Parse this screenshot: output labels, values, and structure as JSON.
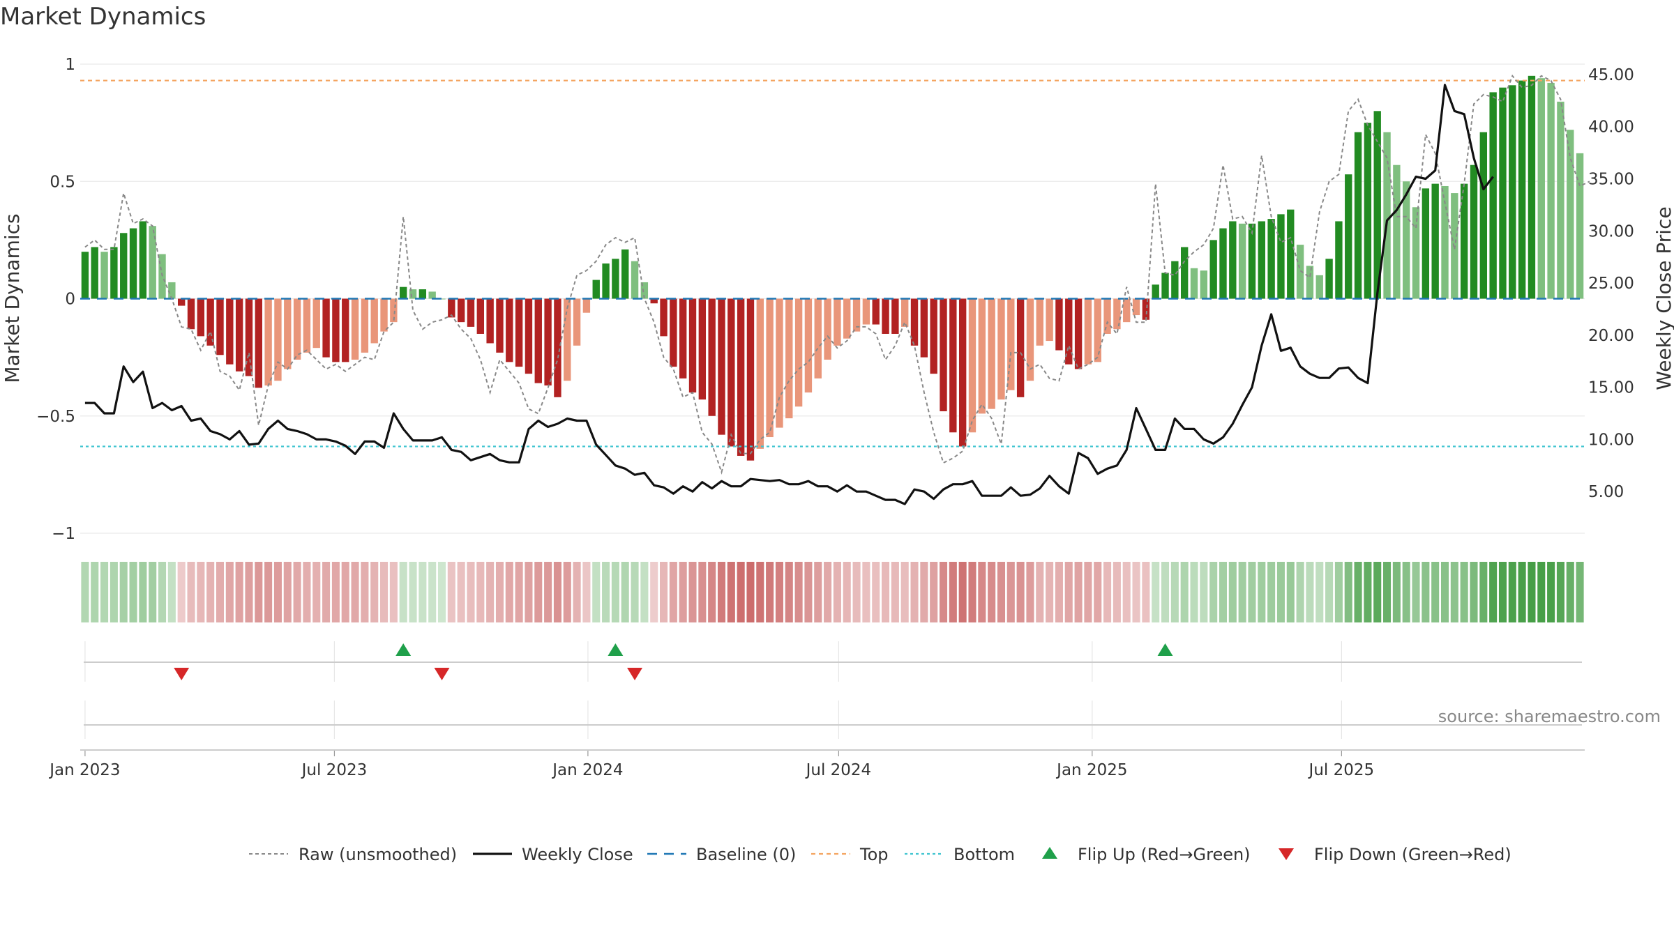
{
  "chart_data": {
    "type": "bar",
    "title": "Market Dynamics",
    "source": "source: sharemaestro.com",
    "start_date": "2023-01-01",
    "frequency": "weekly",
    "ylabel_left": "Market Dynamics",
    "ylabel_right": "Weekly Close Price",
    "ylim_left": [
      -1,
      1
    ],
    "ylim_right": [
      1.0,
      46.0
    ],
    "left_ticks": [
      "1",
      "0.5",
      "0",
      "−0.5",
      "−1"
    ],
    "left_tick_values": [
      1,
      0.5,
      0,
      -0.5,
      -1
    ],
    "right_ticks": [
      "45.00",
      "40.00",
      "35.00",
      "30.00",
      "25.00",
      "20.00",
      "15.00",
      "10.00",
      "5.00"
    ],
    "right_tick_values": [
      45,
      40,
      35,
      30,
      25,
      20,
      15,
      10,
      5
    ],
    "x_ticks": [
      "Jan 2023",
      "Jul 2023",
      "Jan 2024",
      "Jul 2024",
      "Jan 2025",
      "Jul 2025"
    ],
    "x_tick_dates": [
      "2023-01-01",
      "2023-07-01",
      "2024-01-01",
      "2024-07-01",
      "2025-01-01",
      "2025-07-01"
    ],
    "top_line": 0.93,
    "bottom_line": -0.63,
    "baseline": 0,
    "series": [
      {
        "name": "Market Dynamics (smoothed)",
        "values": [
          0.2,
          0.22,
          0.2,
          0.22,
          0.28,
          0.3,
          0.33,
          0.31,
          0.19,
          0.07,
          -0.03,
          -0.13,
          -0.16,
          -0.2,
          -0.24,
          -0.28,
          -0.31,
          -0.33,
          -0.38,
          -0.37,
          -0.35,
          -0.3,
          -0.26,
          -0.23,
          -0.21,
          -0.25,
          -0.27,
          -0.27,
          -0.26,
          -0.23,
          -0.19,
          -0.14,
          -0.1,
          0.05,
          0.04,
          0.04,
          0.03,
          0.0,
          -0.08,
          -0.1,
          -0.12,
          -0.15,
          -0.19,
          -0.23,
          -0.27,
          -0.29,
          -0.32,
          -0.36,
          -0.37,
          -0.42,
          -0.35,
          -0.2,
          -0.06,
          0.08,
          0.15,
          0.17,
          0.21,
          0.16,
          0.07,
          -0.02,
          -0.16,
          -0.29,
          -0.34,
          -0.4,
          -0.43,
          -0.5,
          -0.58,
          -0.63,
          -0.67,
          -0.69,
          -0.64,
          -0.59,
          -0.55,
          -0.51,
          -0.46,
          -0.4,
          -0.34,
          -0.26,
          -0.2,
          -0.17,
          -0.14,
          -0.11,
          -0.11,
          -0.15,
          -0.15,
          -0.12,
          -0.2,
          -0.25,
          -0.32,
          -0.48,
          -0.57,
          -0.63,
          -0.57,
          -0.49,
          -0.47,
          -0.43,
          -0.39,
          -0.42,
          -0.35,
          -0.2,
          -0.18,
          -0.22,
          -0.28,
          -0.3,
          -0.28,
          -0.27,
          -0.15,
          -0.13,
          -0.1,
          -0.07,
          -0.09,
          0.06,
          0.11,
          0.16,
          0.22,
          0.13,
          0.12,
          0.25,
          0.3,
          0.33,
          0.32,
          0.32,
          0.33,
          0.34,
          0.36,
          0.38,
          0.23,
          0.14,
          0.1,
          0.17,
          0.33,
          0.53,
          0.71,
          0.75,
          0.8,
          0.71,
          0.57,
          0.5,
          0.39,
          0.47,
          0.49,
          0.48,
          0.45,
          0.49,
          0.57,
          0.71,
          0.88,
          0.9,
          0.91,
          0.93,
          0.95,
          0.94,
          0.92,
          0.84,
          0.72,
          0.62
        ]
      },
      {
        "name": "Raw (unsmoothed)",
        "values": [
          0.22,
          0.25,
          0.21,
          0.21,
          0.45,
          0.32,
          0.34,
          0.31,
          0.1,
          0.0,
          -0.12,
          -0.13,
          -0.22,
          -0.14,
          -0.31,
          -0.33,
          -0.39,
          -0.23,
          -0.54,
          -0.37,
          -0.27,
          -0.3,
          -0.24,
          -0.22,
          -0.26,
          -0.3,
          -0.28,
          -0.31,
          -0.28,
          -0.25,
          -0.26,
          -0.14,
          -0.1,
          0.35,
          -0.05,
          -0.13,
          -0.1,
          -0.09,
          -0.07,
          -0.13,
          -0.17,
          -0.26,
          -0.4,
          -0.26,
          -0.31,
          -0.36,
          -0.47,
          -0.49,
          -0.38,
          -0.26,
          -0.04,
          0.1,
          0.12,
          0.16,
          0.23,
          0.26,
          0.24,
          0.26,
          0.0,
          -0.1,
          -0.25,
          -0.3,
          -0.42,
          -0.4,
          -0.57,
          -0.62,
          -0.74,
          -0.58,
          -0.66,
          -0.66,
          -0.6,
          -0.57,
          -0.42,
          -0.35,
          -0.3,
          -0.27,
          -0.21,
          -0.16,
          -0.21,
          -0.18,
          -0.12,
          -0.12,
          -0.15,
          -0.26,
          -0.2,
          -0.1,
          -0.2,
          -0.4,
          -0.57,
          -0.7,
          -0.68,
          -0.65,
          -0.52,
          -0.45,
          -0.51,
          -0.62,
          -0.23,
          -0.23,
          -0.3,
          -0.28,
          -0.34,
          -0.35,
          -0.2,
          -0.3,
          -0.28,
          -0.25,
          -0.1,
          -0.15,
          0.05,
          -0.1,
          -0.1,
          0.49,
          0.11,
          0.1,
          0.16,
          0.2,
          0.23,
          0.3,
          0.57,
          0.34,
          0.35,
          0.28,
          0.61,
          0.35,
          0.24,
          0.26,
          0.12,
          0.09,
          0.37,
          0.5,
          0.53,
          0.8,
          0.85,
          0.74,
          0.67,
          0.6,
          0.35,
          0.35,
          0.3,
          0.7,
          0.62,
          0.41,
          0.21,
          0.49,
          0.83,
          0.87,
          0.86,
          0.84,
          0.95,
          0.9,
          0.91,
          0.95,
          0.93,
          0.85,
          0.6,
          0.48,
          0.5
        ]
      },
      {
        "name": "Weekly Close",
        "values": [
          13.5,
          13.5,
          12.5,
          12.5,
          17.0,
          15.5,
          16.5,
          13.0,
          13.5,
          12.8,
          13.2,
          11.8,
          12.0,
          10.8,
          10.5,
          10.0,
          10.8,
          9.5,
          9.6,
          11.0,
          11.8,
          11.0,
          10.8,
          10.5,
          10.0,
          10.0,
          9.8,
          9.4,
          8.6,
          9.8,
          9.8,
          9.2,
          12.5,
          11.0,
          9.9,
          9.9,
          9.9,
          10.2,
          9.0,
          8.8,
          8.0,
          8.3,
          8.6,
          8.0,
          7.8,
          7.8,
          11.0,
          11.8,
          11.2,
          11.5,
          12.0,
          11.8,
          11.8,
          9.5,
          8.5,
          7.5,
          7.2,
          6.6,
          6.8,
          5.6,
          5.4,
          4.8,
          5.5,
          5.0,
          5.9,
          5.3,
          6.0,
          5.5,
          5.5,
          6.2,
          6.1,
          6.0,
          6.1,
          5.7,
          5.7,
          6.0,
          5.5,
          5.5,
          5.0,
          5.6,
          5.0,
          5.0,
          4.6,
          4.2,
          4.2,
          3.8,
          5.2,
          5.0,
          4.3,
          5.2,
          5.7,
          5.7,
          6.0,
          4.6,
          4.6,
          4.6,
          5.4,
          4.6,
          4.7,
          5.3,
          6.5,
          5.5,
          4.8,
          8.7,
          8.2,
          6.7,
          7.2,
          7.5,
          9.0,
          13.0,
          11.0,
          9.0,
          9.0,
          12.0,
          11.0,
          11.0,
          10.0,
          9.6,
          10.2,
          11.5,
          13.3,
          15.0,
          19.0,
          22.0,
          18.5,
          18.8,
          17.0,
          16.3,
          15.9,
          15.9,
          16.8,
          16.9,
          15.9,
          15.4,
          24.0,
          31.0,
          32.0,
          33.5,
          35.2,
          35.0,
          35.8,
          44.0,
          41.5,
          41.2,
          37.0,
          34.0,
          35.2
        ]
      }
    ],
    "flips_up": [
      33,
      55,
      112
    ],
    "flips_down": [
      10,
      37,
      57
    ],
    "regime_colors": {
      "strong_green": "#228b22",
      "light_green": "#7fbf7f",
      "strong_red": "#b22222",
      "light_red": "#e9967a",
      "weekly_close": "#111111",
      "raw": "#888888",
      "baseline": "#1f77b4",
      "top": "#f4a460",
      "bottom": "#40c4d0",
      "flip_up": "#1fa04a",
      "flip_down": "#d62728"
    },
    "legend": [
      {
        "label": "Raw (unsmoothed)"
      },
      {
        "label": "Weekly Close"
      },
      {
        "label": "Baseline (0)"
      },
      {
        "label": "Top"
      },
      {
        "label": "Bottom"
      },
      {
        "label": "Flip Up (Red→Green)"
      },
      {
        "label": "Flip Down (Green→Red)"
      }
    ]
  }
}
